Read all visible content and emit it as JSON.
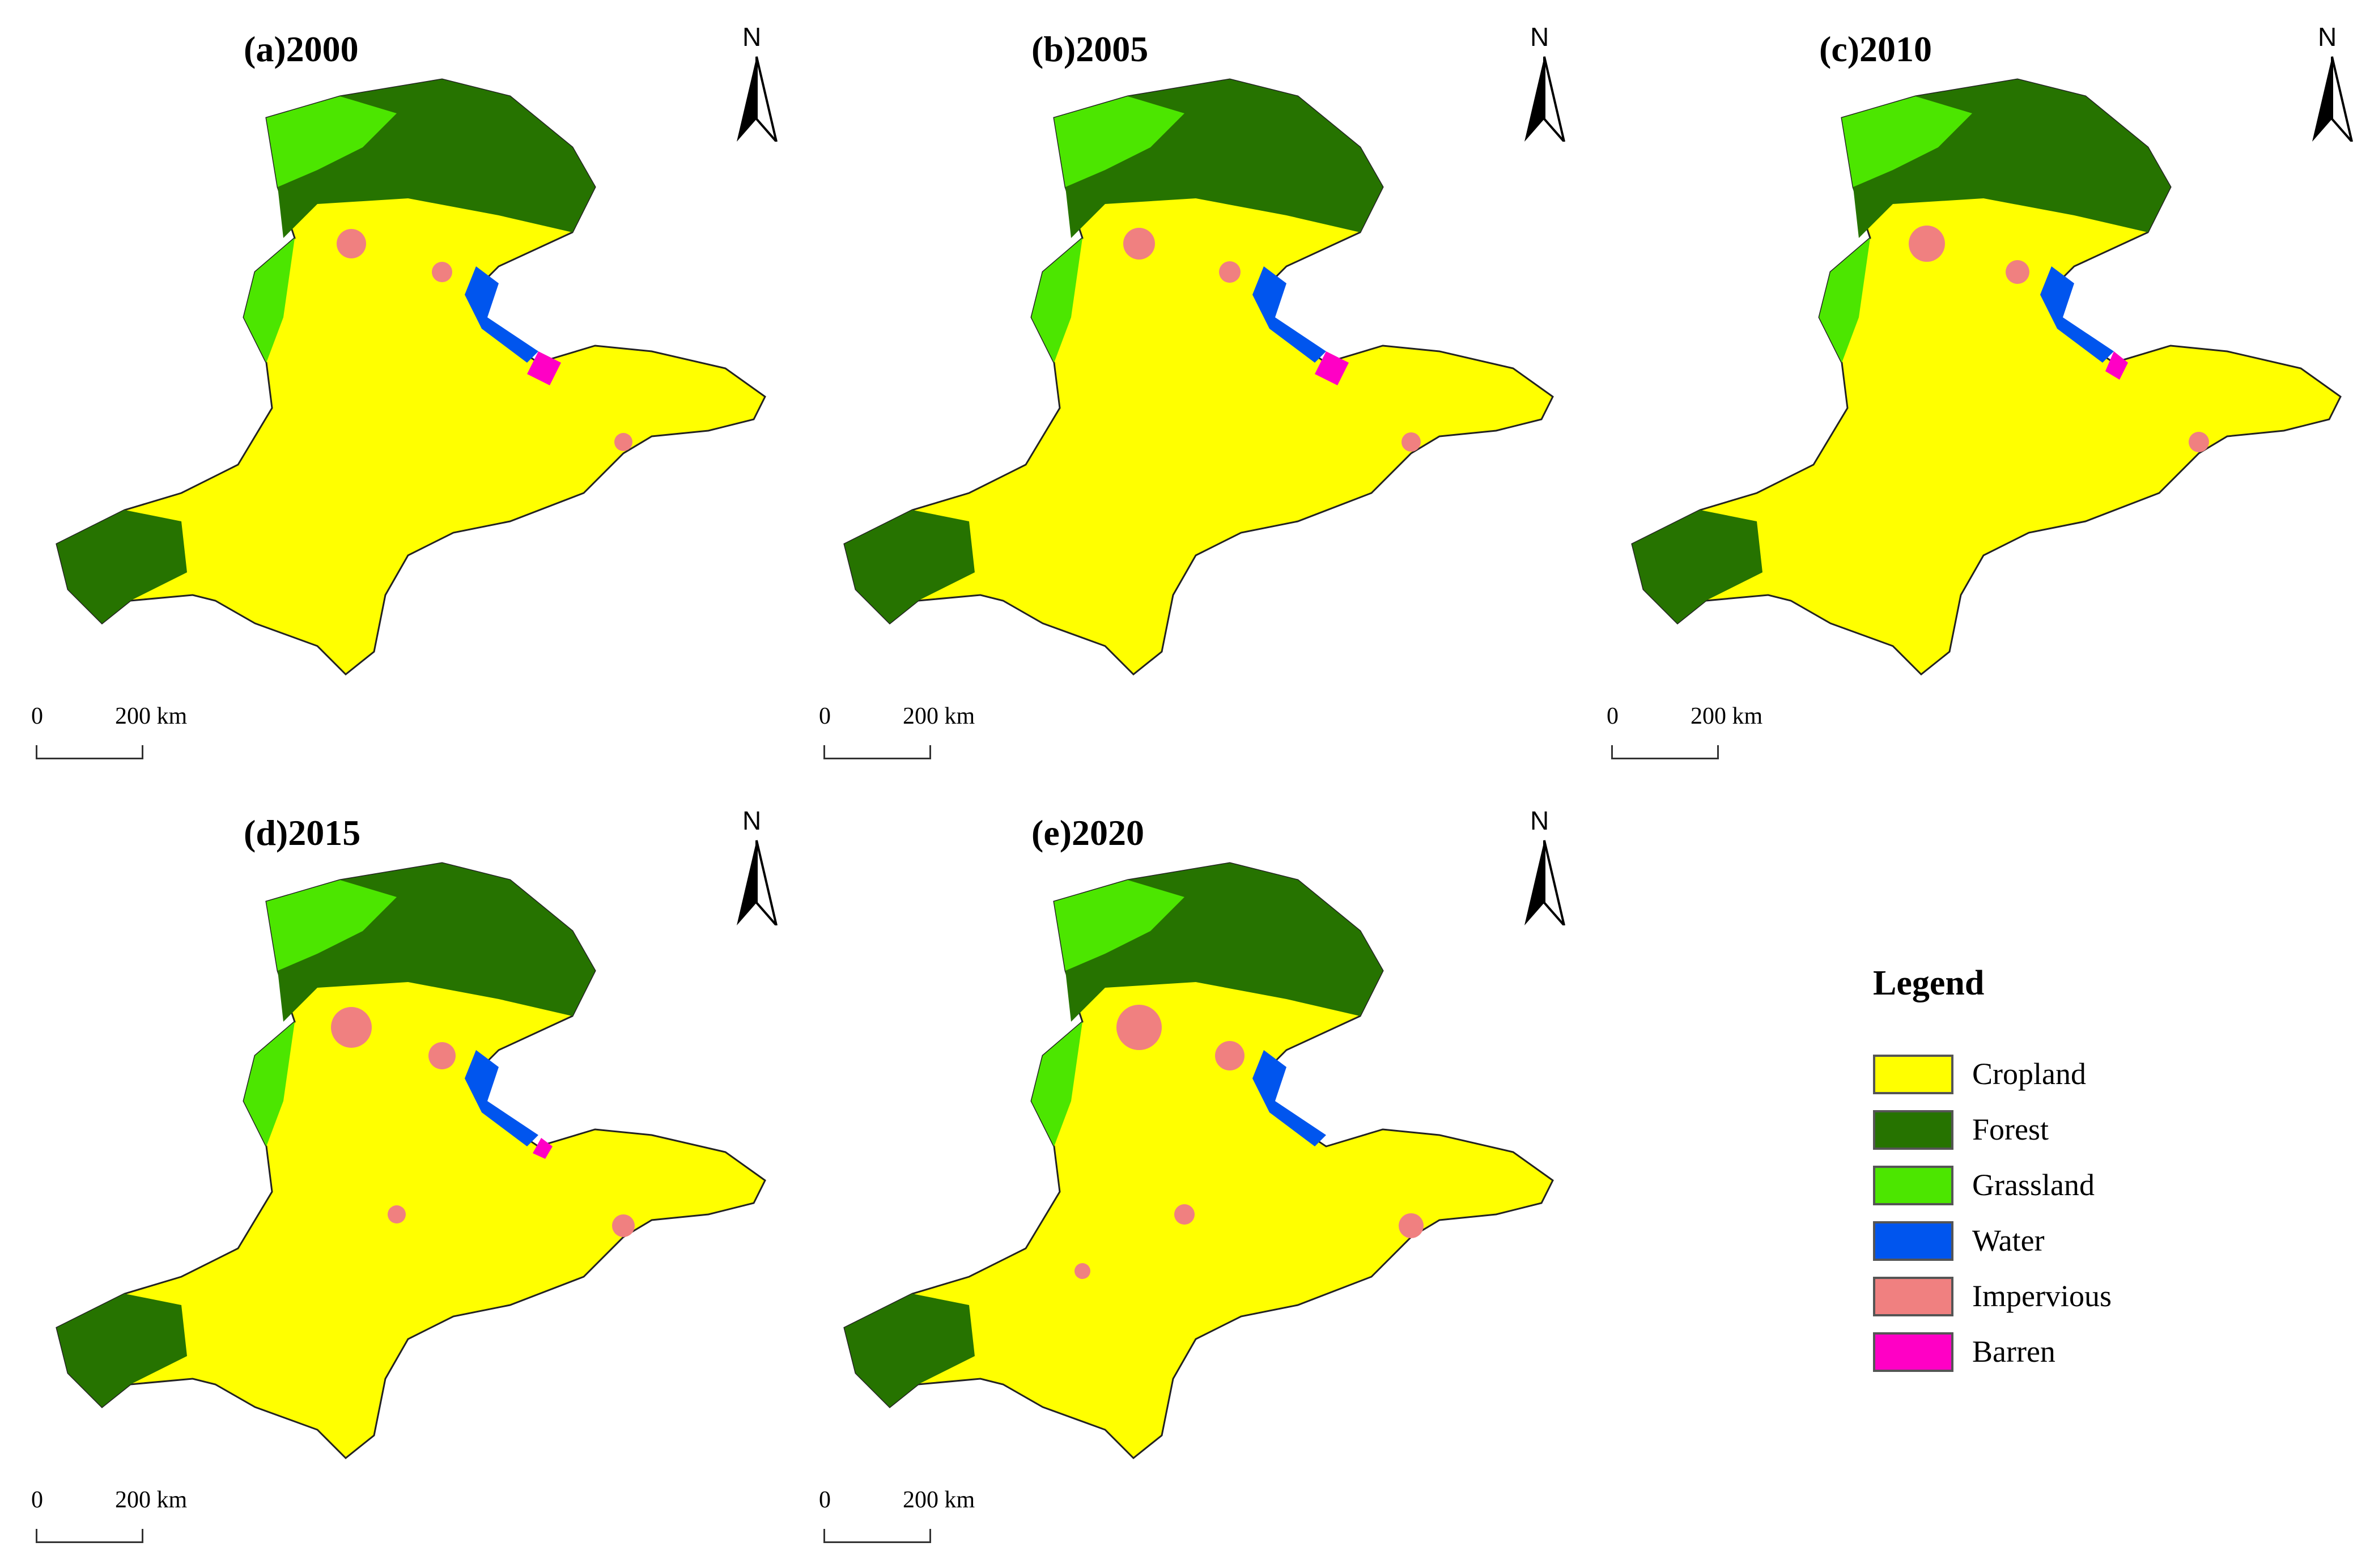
{
  "figure": {
    "panels": [
      {
        "title": "(a)2000"
      },
      {
        "title": "(b)2005"
      },
      {
        "title": "(c)2010"
      },
      {
        "title": "(d)2015"
      },
      {
        "title": "(e)2020"
      }
    ],
    "north_label": "N",
    "scale": {
      "zero": "0",
      "distance": "200 km"
    }
  },
  "legend": {
    "title": "Legend",
    "items": [
      {
        "label": "Cropland",
        "color": "#ffff00"
      },
      {
        "label": "Forest",
        "color": "#267300"
      },
      {
        "label": "Grassland",
        "color": "#4ce600"
      },
      {
        "label": "Water",
        "color": "#0055ee"
      },
      {
        "label": "Impervious",
        "color": "#f08080"
      },
      {
        "label": "Barren",
        "color": "#ff00c5"
      }
    ]
  }
}
